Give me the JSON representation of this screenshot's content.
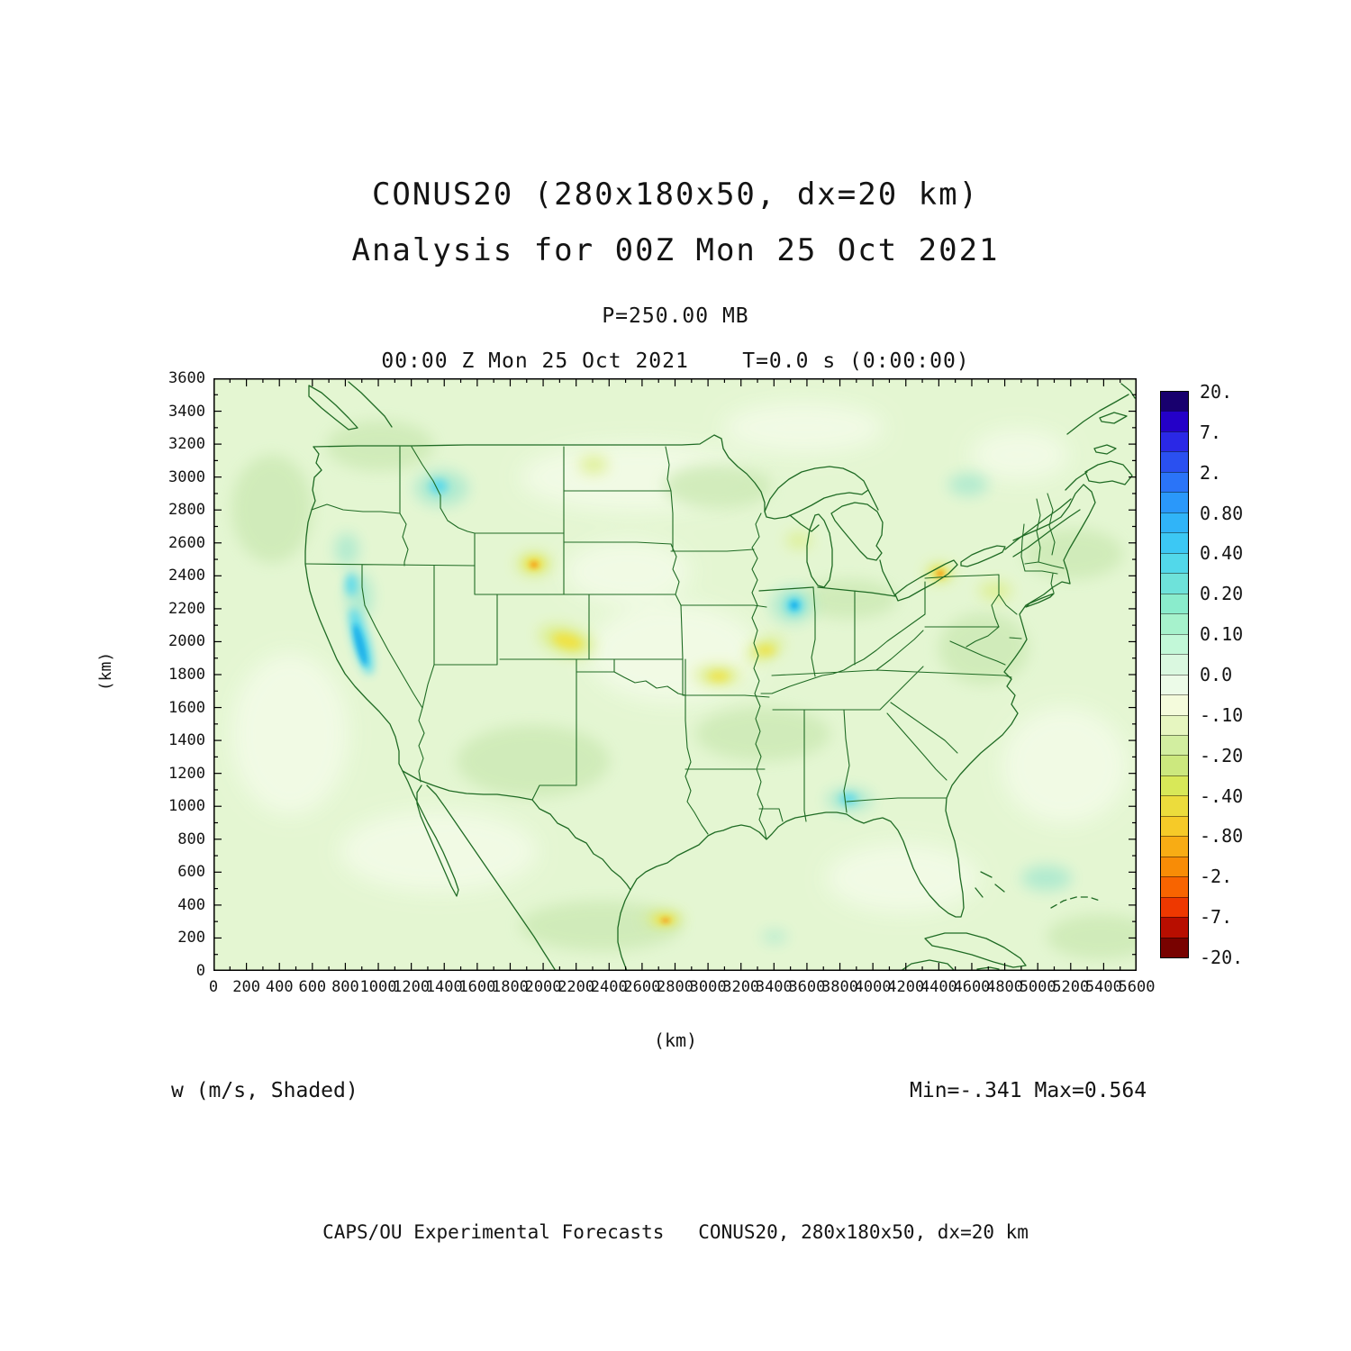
{
  "title_line1": "CONUS20 (280x180x50, dx=20 km)",
  "title_line2": "Analysis for 00Z Mon 25 Oct 2021",
  "pressure_label": "P=250.00 MB",
  "time_label": "00:00 Z Mon 25 Oct 2021    T=0.0 s (0:00:00)",
  "field_label": "w (m/s, Shaded)",
  "minmax_label": "Min=-.341 Max=0.564",
  "footer": "CAPS/OU Experimental Forecasts   CONUS20, 280x180x50, dx=20 km",
  "axes": {
    "x_label": "(km)",
    "y_label": "(km)",
    "x_range_km": [
      0,
      5600
    ],
    "y_range_km": [
      0,
      3600
    ],
    "major_tick_interval_km": 200,
    "minor_tick_interval_km": 100,
    "x_ticks": [
      "0",
      "200",
      "400",
      "600",
      "800",
      "1000",
      "1200",
      "1400",
      "1600",
      "1800",
      "2000",
      "2200",
      "2400",
      "2600",
      "2800",
      "3000",
      "3200",
      "3400",
      "3600",
      "3800",
      "4000",
      "4200",
      "4400",
      "4600",
      "4800",
      "5000",
      "5200",
      "5400",
      "5600"
    ],
    "y_ticks": [
      "3600",
      "3400",
      "3200",
      "3000",
      "2800",
      "2600",
      "2400",
      "2200",
      "2000",
      "1800",
      "1600",
      "1400",
      "1200",
      "1000",
      "800",
      "600",
      "400",
      "200",
      "0"
    ]
  },
  "colorbar": {
    "labels": [
      "20.",
      "7.",
      "2.",
      "0.80",
      "0.40",
      "0.20",
      "0.10",
      "0.0",
      "-.10",
      "-.20",
      "-.40",
      "-.80",
      "-2.",
      "-7.",
      "-20."
    ],
    "colors": [
      "#18006e",
      "#2400c8",
      "#2a28e6",
      "#2a50f0",
      "#2a74f8",
      "#2a98fa",
      "#30b4f8",
      "#3cc8f4",
      "#52d8ea",
      "#6ee2da",
      "#8aeccc",
      "#a6f2cc",
      "#c2f8d8",
      "#daf8e0",
      "#ecfbe8",
      "#f4fbdc",
      "#e6f6c0",
      "#d2eea0",
      "#cce87e",
      "#d8e858",
      "#ecdc3c",
      "#f6ca28",
      "#f8ac14",
      "#f88c06",
      "#f86400",
      "#ee3800",
      "#b80e00",
      "#780200"
    ]
  },
  "chart_data": {
    "type": "heatmap",
    "subtype": "filled-contour-map",
    "title": "CONUS20 (280x180x50, dx=20 km)",
    "subtitle": "Analysis for 00Z Mon 25 Oct 2021",
    "variable": "w",
    "units": "m/s",
    "render_style": "Shaded",
    "pressure_level_mb": 250.0,
    "valid_time": "00:00 Z Mon 25 Oct 2021",
    "forecast_time_s": 0.0,
    "forecast_time_hms": "0:00:00",
    "grid": "280x180x50",
    "dx": "20 km",
    "min": -0.341,
    "max": 0.564,
    "xlabel": "(km)",
    "ylabel": "(km)",
    "xlim": [
      0,
      5600
    ],
    "ylim": [
      0,
      3600
    ],
    "tick_interval": 200,
    "grid_lines": false,
    "legend_position": "right",
    "contour_level_boundaries": [
      20,
      7,
      2,
      0.8,
      0.4,
      0.2,
      0.1,
      0.0,
      -0.1,
      -0.2,
      -0.4,
      -0.8,
      -2,
      -7,
      -20
    ],
    "basemap": "CONUS with US state borders, southern Canada, northern Mexico, Cuba (dark green outlines)",
    "field_summary": [
      {
        "feature": "strong updraft streak (cyan/blue, ~0.2-0.56 m/s)",
        "x_km": 900,
        "y_km": 2000,
        "location": "Sierra Nevada, eastern California"
      },
      {
        "feature": "updraft maximum (cyan, ~0.2-0.4 m/s)",
        "x_km": 3530,
        "y_km": 2220,
        "location": "southern Wisconsin / northern Illinois"
      },
      {
        "feature": "weak updraft patch (pale cyan)",
        "x_km": 3850,
        "y_km": 1050,
        "location": "central Gulf coast"
      },
      {
        "feature": "downdraft spot (yellow/orange, ~ -0.2 to -0.34 m/s)",
        "x_km": 1950,
        "y_km": 2470,
        "location": "northwest Wyoming"
      },
      {
        "feature": "downdraft spot (yellow/orange)",
        "x_km": 4400,
        "y_km": 2420,
        "location": "Lake Erie / western New York"
      },
      {
        "feature": "downdraft streak (yellow/orange)",
        "x_km": 2730,
        "y_km": 320,
        "location": "northeastern Mexico south of Texas"
      },
      {
        "feature": "background",
        "value": "near zero, weakly negative (pale green) over most of domain"
      }
    ]
  }
}
